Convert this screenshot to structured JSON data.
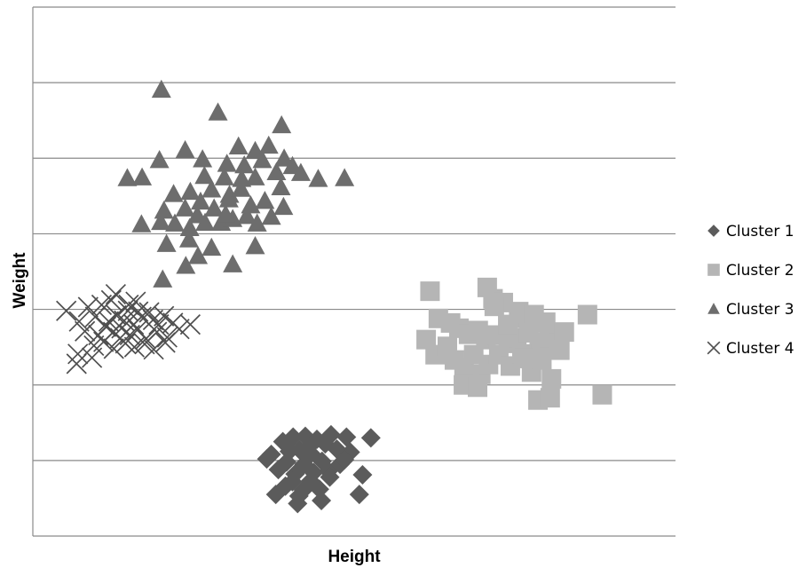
{
  "chart_data": {
    "type": "scatter",
    "title": "",
    "xlabel": "Height",
    "ylabel": "Weight",
    "xlim": [
      0,
      100
    ],
    "ylim": [
      0,
      7
    ],
    "x_ticks_shown": false,
    "y_ticks_shown": false,
    "grid": {
      "horizontal": true,
      "vertical": false
    },
    "legend_position": "right",
    "series": [
      {
        "name": "Cluster 1",
        "marker": "diamond",
        "color": "#5b5b5b",
        "points": [
          [
            37.1,
            1.08
          ],
          [
            38.9,
            1.25
          ],
          [
            40.5,
            1.31
          ],
          [
            41.5,
            1.14
          ],
          [
            42.4,
            1.32
          ],
          [
            43.3,
            1.09
          ],
          [
            44.2,
            1.28
          ],
          [
            45.5,
            1.22
          ],
          [
            46.4,
            1.34
          ],
          [
            47.3,
            1.15
          ],
          [
            48.8,
            1.31
          ],
          [
            49.4,
            1.11
          ],
          [
            38.2,
            0.88
          ],
          [
            39.5,
            0.98
          ],
          [
            40.8,
            0.82
          ],
          [
            42.2,
            0.95
          ],
          [
            43.7,
            0.84
          ],
          [
            45.0,
            0.99
          ],
          [
            46.0,
            0.86
          ],
          [
            47.8,
            0.95
          ],
          [
            48.5,
            1.01
          ],
          [
            37.8,
            0.55
          ],
          [
            39.3,
            0.66
          ],
          [
            40.4,
            0.72
          ],
          [
            41.4,
            0.53
          ],
          [
            42.1,
            0.61
          ],
          [
            43.2,
            0.73
          ],
          [
            44.6,
            0.62
          ],
          [
            46.2,
            0.78
          ],
          [
            50.8,
            0.55
          ],
          [
            51.3,
            0.81
          ],
          [
            41.2,
            0.43
          ],
          [
            52.6,
            1.3
          ],
          [
            36.4,
            1.02
          ],
          [
            44.9,
            0.47
          ],
          [
            39.9,
            1.12
          ],
          [
            42.9,
            1.18
          ]
        ]
      },
      {
        "name": "Cluster 2",
        "marker": "square",
        "color": "#b5b5b5",
        "points": [
          [
            61.8,
            3.24
          ],
          [
            70.7,
            3.29
          ],
          [
            71.6,
            3.14
          ],
          [
            73.2,
            3.09
          ],
          [
            75.6,
            2.97
          ],
          [
            76.9,
            2.88
          ],
          [
            78.0,
            2.93
          ],
          [
            79.8,
            2.83
          ],
          [
            86.3,
            2.93
          ],
          [
            63.1,
            2.88
          ],
          [
            65.0,
            2.82
          ],
          [
            66.3,
            2.75
          ],
          [
            67.8,
            2.67
          ],
          [
            69.3,
            2.72
          ],
          [
            70.5,
            2.6
          ],
          [
            72.1,
            2.66
          ],
          [
            74.0,
            2.55
          ],
          [
            75.3,
            2.62
          ],
          [
            77.2,
            2.69
          ],
          [
            78.8,
            2.57
          ],
          [
            80.3,
            2.62
          ],
          [
            81.8,
            2.56
          ],
          [
            82.7,
            2.7
          ],
          [
            61.2,
            2.6
          ],
          [
            62.6,
            2.4
          ],
          [
            64.5,
            2.51
          ],
          [
            65.6,
            2.33
          ],
          [
            67.1,
            2.23
          ],
          [
            68.6,
            2.4
          ],
          [
            69.7,
            2.14
          ],
          [
            70.9,
            2.27
          ],
          [
            72.5,
            2.4
          ],
          [
            74.3,
            2.25
          ],
          [
            76.1,
            2.41
          ],
          [
            77.6,
            2.17
          ],
          [
            79.2,
            2.33
          ],
          [
            80.7,
            2.08
          ],
          [
            82.0,
            2.46
          ],
          [
            67.0,
            2.0
          ],
          [
            69.2,
            1.97
          ],
          [
            78.6,
            1.8
          ],
          [
            80.5,
            1.83
          ],
          [
            88.6,
            1.87
          ],
          [
            71.8,
            3.04
          ],
          [
            73.9,
            2.8
          ],
          [
            76.4,
            2.35
          ]
        ]
      },
      {
        "name": "Cluster 3",
        "marker": "triangle",
        "color": "#6d6d6d",
        "points": [
          [
            20.0,
            5.91
          ],
          [
            28.8,
            5.61
          ],
          [
            38.7,
            5.44
          ],
          [
            23.7,
            5.11
          ],
          [
            32.0,
            5.16
          ],
          [
            34.6,
            5.1
          ],
          [
            36.7,
            5.17
          ],
          [
            39.1,
            5.0
          ],
          [
            19.7,
            4.98
          ],
          [
            26.4,
            4.99
          ],
          [
            30.2,
            4.93
          ],
          [
            32.9,
            4.91
          ],
          [
            35.7,
            4.98
          ],
          [
            37.9,
            4.82
          ],
          [
            40.4,
            4.9
          ],
          [
            14.7,
            4.74
          ],
          [
            17.0,
            4.75
          ],
          [
            26.7,
            4.77
          ],
          [
            29.8,
            4.75
          ],
          [
            32.5,
            4.73
          ],
          [
            34.6,
            4.75
          ],
          [
            41.7,
            4.81
          ],
          [
            44.4,
            4.73
          ],
          [
            48.5,
            4.74
          ],
          [
            21.9,
            4.53
          ],
          [
            24.5,
            4.56
          ],
          [
            26.1,
            4.43
          ],
          [
            27.8,
            4.59
          ],
          [
            30.6,
            4.52
          ],
          [
            33.9,
            4.38
          ],
          [
            36.1,
            4.44
          ],
          [
            38.6,
            4.62
          ],
          [
            20.4,
            4.31
          ],
          [
            23.7,
            4.34
          ],
          [
            25.6,
            4.25
          ],
          [
            28.2,
            4.34
          ],
          [
            29.3,
            4.15
          ],
          [
            31.1,
            4.2
          ],
          [
            33.3,
            4.24
          ],
          [
            34.9,
            4.14
          ],
          [
            37.1,
            4.23
          ],
          [
            39.0,
            4.36
          ],
          [
            16.9,
            4.13
          ],
          [
            19.9,
            4.16
          ],
          [
            22.1,
            4.14
          ],
          [
            24.4,
            4.08
          ],
          [
            26.8,
            4.15
          ],
          [
            30.0,
            4.26
          ],
          [
            20.8,
            3.87
          ],
          [
            25.7,
            3.71
          ],
          [
            27.8,
            3.82
          ],
          [
            34.6,
            3.84
          ],
          [
            23.8,
            3.58
          ],
          [
            31.1,
            3.6
          ],
          [
            20.2,
            3.4
          ],
          [
            24.3,
            3.93
          ],
          [
            30.5,
            4.46
          ],
          [
            32.4,
            4.6
          ]
        ]
      },
      {
        "name": "Cluster 4",
        "marker": "x",
        "color": "#4f4f4f",
        "points": [
          [
            5.2,
            2.98
          ],
          [
            8.6,
            3.03
          ],
          [
            12.2,
            3.12
          ],
          [
            14.9,
            3.06
          ],
          [
            16.4,
            2.97
          ],
          [
            18.1,
            2.96
          ],
          [
            7.2,
            2.84
          ],
          [
            9.7,
            2.9
          ],
          [
            11.8,
            2.84
          ],
          [
            13.0,
            2.92
          ],
          [
            14.2,
            2.85
          ],
          [
            15.7,
            2.8
          ],
          [
            16.9,
            2.9
          ],
          [
            18.7,
            2.86
          ],
          [
            20.4,
            2.91
          ],
          [
            21.8,
            2.82
          ],
          [
            8.1,
            2.71
          ],
          [
            10.2,
            2.66
          ],
          [
            11.4,
            2.77
          ],
          [
            12.5,
            2.7
          ],
          [
            13.8,
            2.75
          ],
          [
            15.1,
            2.66
          ],
          [
            16.3,
            2.73
          ],
          [
            17.6,
            2.61
          ],
          [
            19.3,
            2.7
          ],
          [
            20.9,
            2.63
          ],
          [
            22.8,
            2.74
          ],
          [
            24.5,
            2.8
          ],
          [
            9.5,
            2.52
          ],
          [
            11.0,
            2.57
          ],
          [
            12.6,
            2.48
          ],
          [
            14.4,
            2.55
          ],
          [
            15.8,
            2.5
          ],
          [
            17.4,
            2.54
          ],
          [
            18.8,
            2.47
          ],
          [
            20.6,
            2.56
          ],
          [
            7.0,
            2.41
          ],
          [
            9.2,
            2.36
          ],
          [
            6.8,
            2.28
          ],
          [
            13.6,
            2.62
          ],
          [
            10.7,
            3.06
          ],
          [
            12.9,
            3.2
          ],
          [
            14.8,
            2.98
          ],
          [
            19.6,
            2.8
          ],
          [
            16.0,
            3.1
          ]
        ]
      }
    ]
  }
}
